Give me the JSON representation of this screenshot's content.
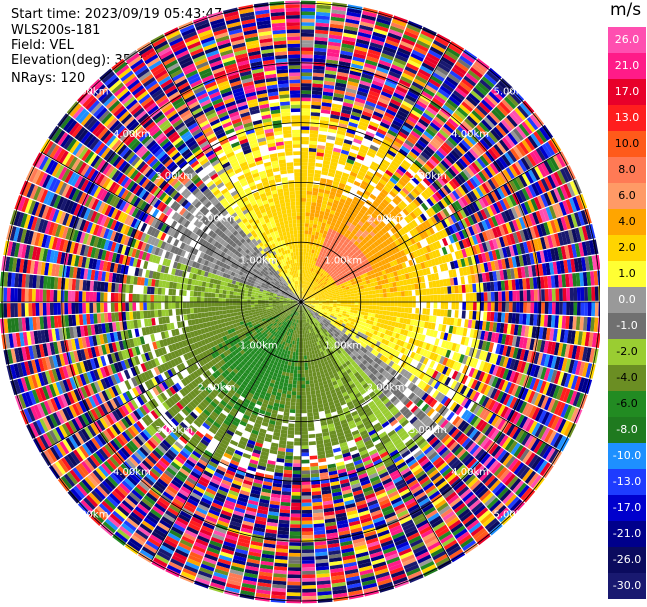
{
  "header": {
    "start_time": "Start time: 2023/09/19 05:43:47",
    "site": "WLS200s-181",
    "field": "Field: VEL",
    "elevation": "Elevation(deg): 35.30",
    "nrays": "NRays: 120"
  },
  "colorbar": {
    "unit": "m/s",
    "ticks": [
      "26.0",
      "21.0",
      "17.0",
      "13.0",
      "10.0",
      "8.0",
      "6.0",
      "4.0",
      "2.0",
      "1.0",
      "0.0",
      "-1.0",
      "-2.0",
      "-4.0",
      "-6.0",
      "-8.0",
      "-10.0",
      "-13.0",
      "-17.0",
      "-21.0",
      "-26.0",
      "-30.0"
    ],
    "colors": [
      "#ff4fb0",
      "#ff1b88",
      "#e8002a",
      "#ff1e1e",
      "#ff5a1a",
      "#ff7a55",
      "#ff9a66",
      "#ffa500",
      "#ffd400",
      "#ffff33",
      "#999999",
      "#707070",
      "#9acd32",
      "#6b8e23",
      "#228b22",
      "#1f7a1f",
      "#1e90ff",
      "#1e3cff",
      "#0000cd",
      "#00008b",
      "#0b0b5e",
      "#191970"
    ]
  },
  "chart_data": {
    "type": "heatmap",
    "projection": "polar PPI",
    "field": "VEL",
    "units": "m/s",
    "nrays": 120,
    "elevation_deg": 35.3,
    "range_rings_km": [
      1,
      2,
      3,
      4,
      5
    ],
    "ring_labels": [
      "1.00km",
      "2.00km",
      "3.00km",
      "4.00km",
      "5.00km"
    ],
    "inner_flow": {
      "positive_sector": "north to east, yellow/orange 1 to 6 m/s, max near 8 m/s",
      "negative_sector": "south to southwest, green -2 to -6 m/s",
      "noise_beyond_km": 3
    }
  }
}
